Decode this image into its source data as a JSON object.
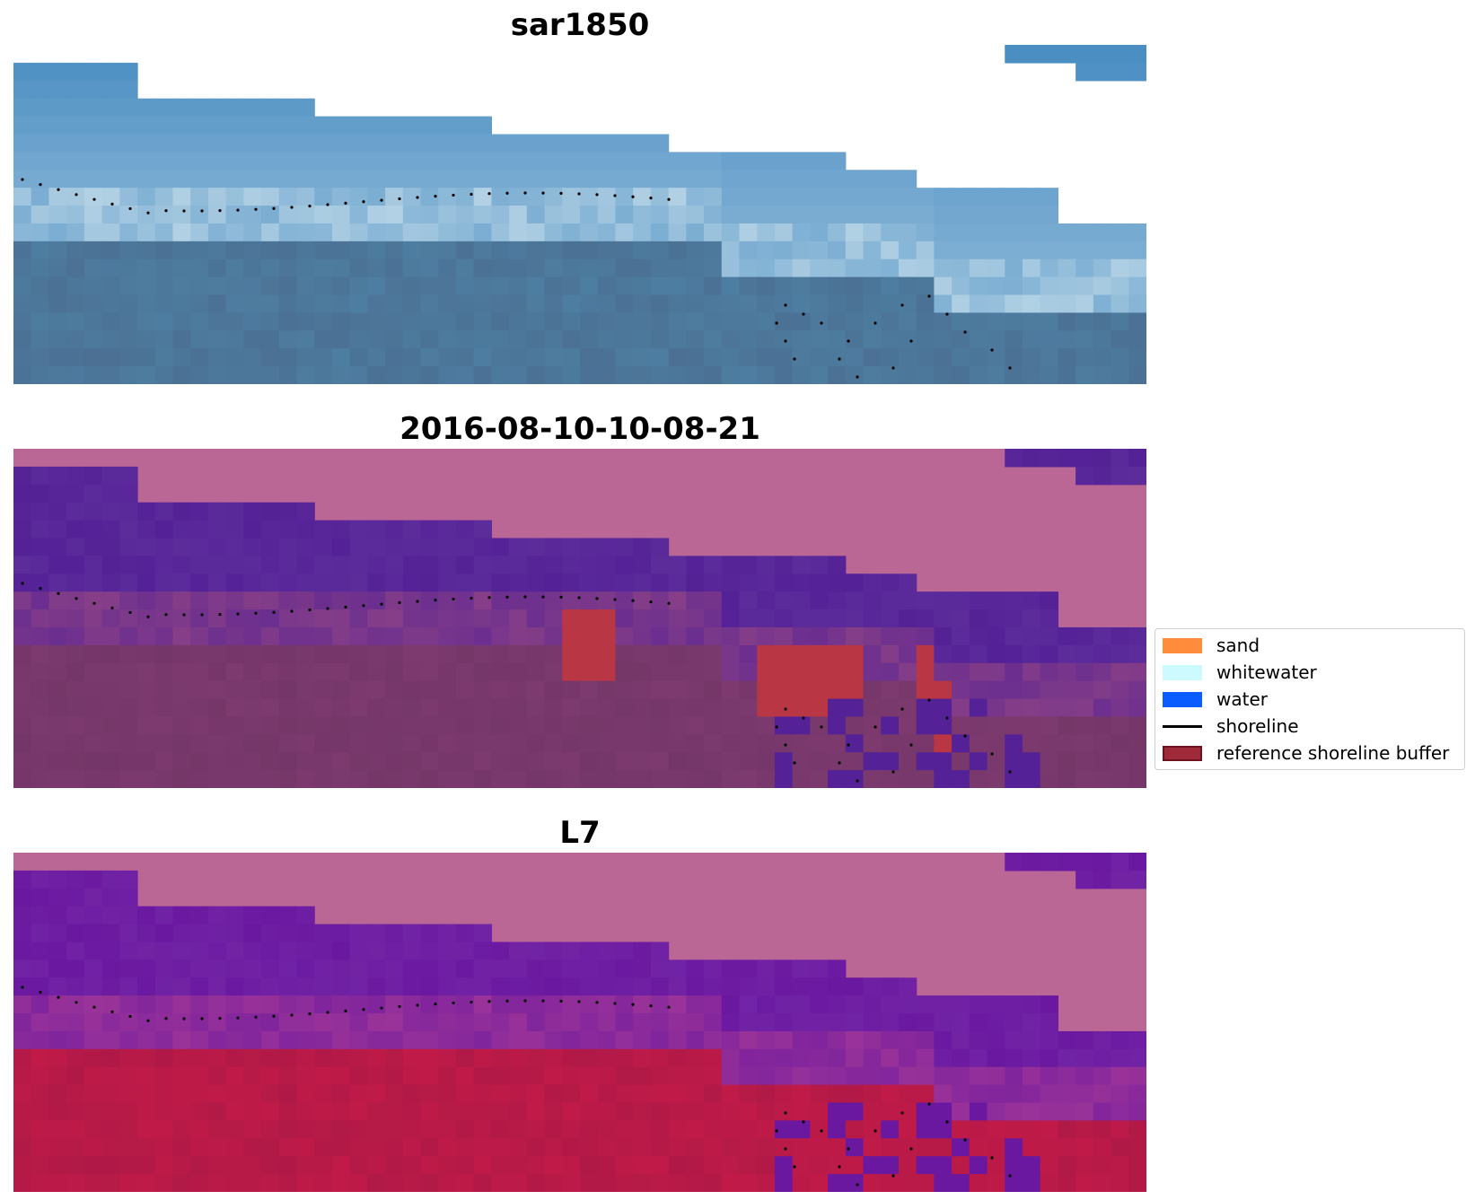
{
  "panels": [
    {
      "title": "sar1850",
      "style": "rgb"
    },
    {
      "title": "2016-08-10-10-08-21",
      "style": "class"
    },
    {
      "title": "L7",
      "style": "ndwi"
    }
  ],
  "legend": {
    "items": [
      {
        "label": "sand",
        "color": "#ff8c3a",
        "kind": "patch"
      },
      {
        "label": "whitewater",
        "color": "#ccfaff",
        "kind": "patch"
      },
      {
        "label": "water",
        "color": "#0a5cff",
        "kind": "patch"
      },
      {
        "label": "shoreline",
        "color": "#000000",
        "kind": "line"
      },
      {
        "label": "reference shoreline buffer",
        "color": "#9e2a3a",
        "kind": "patch-edged"
      }
    ]
  },
  "colors": {
    "background": "#ffffff",
    "nodata": "#bb6795",
    "rgb_water": "#4a8ec2",
    "class_water": "#542196",
    "class_land": "#7c3a6e",
    "buffer": "#b93644",
    "ndwi_water": "#6a18a0",
    "ndwi_land": "#c01a48"
  }
}
